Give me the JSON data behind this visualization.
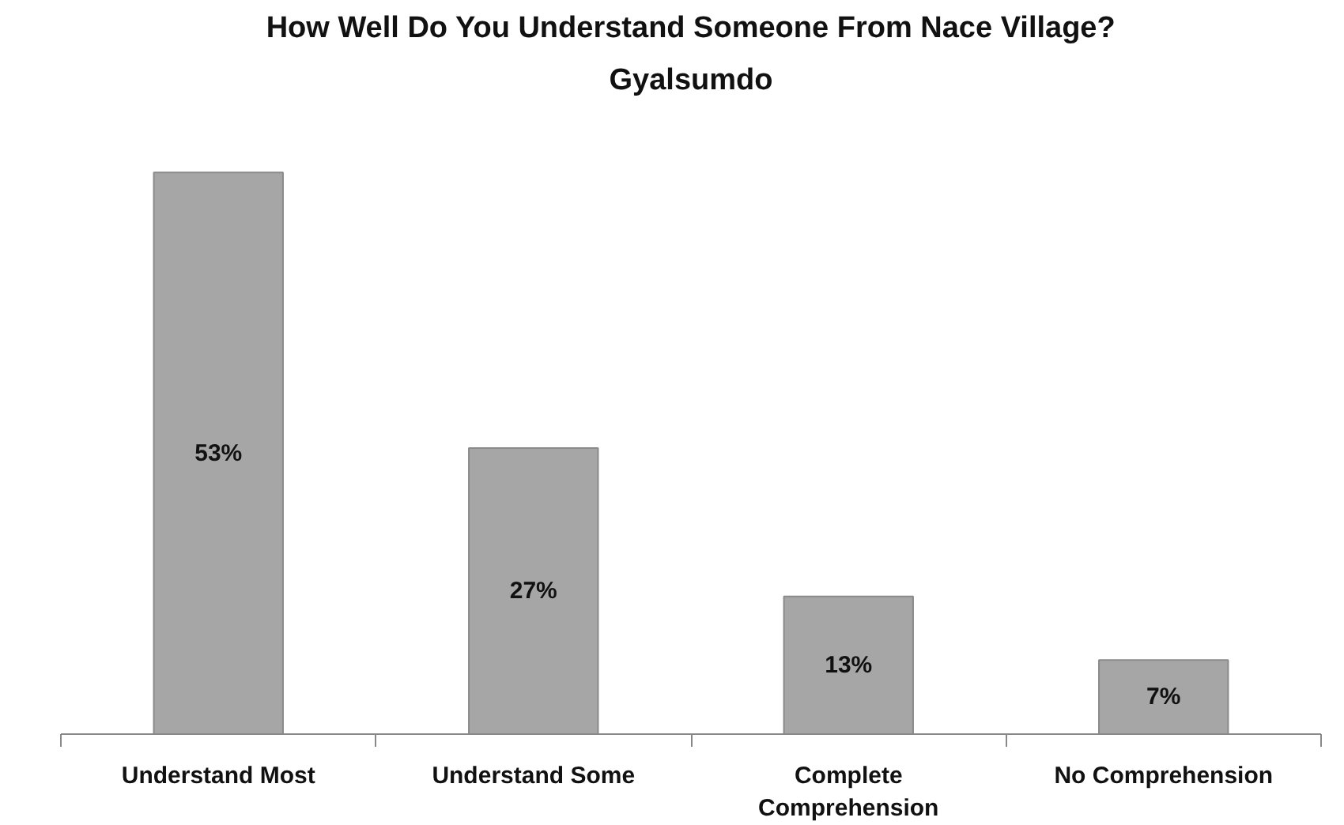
{
  "chart_data": {
    "type": "bar",
    "title": "How Well Do You Understand Someone From Nace Village?",
    "subtitle": "Gyalsumdo",
    "categories": [
      "Understand Most",
      "Understand Some",
      "Complete Comprehension",
      "No Comprehension"
    ],
    "values": [
      53,
      27,
      13,
      7
    ],
    "value_labels": [
      "53%",
      "27%",
      "13%",
      "7%"
    ],
    "color": "#a6a6a6",
    "grid": false
  }
}
